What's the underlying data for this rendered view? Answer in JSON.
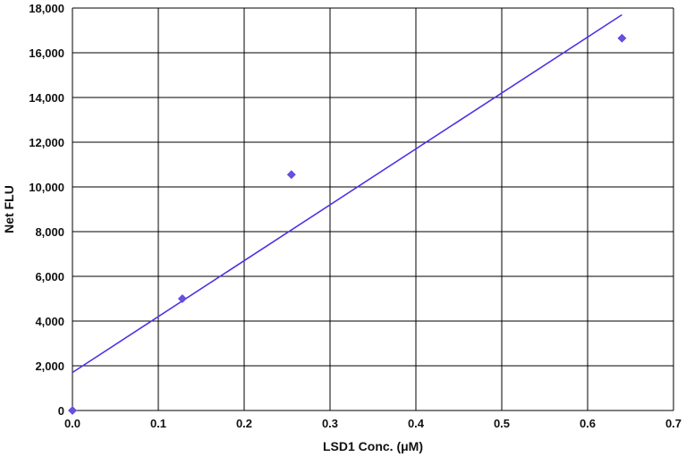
{
  "chart_data": {
    "type": "scatter",
    "title": "",
    "xlabel": "LSD1 Conc. (μM)",
    "ylabel": "Net FLU",
    "xlim": [
      0,
      0.7
    ],
    "ylim": [
      0,
      18000
    ],
    "grid": true,
    "x_ticks": [
      0,
      0.1,
      0.2,
      0.3,
      0.4,
      0.5,
      0.6,
      0.7
    ],
    "x_tick_labels": [
      "0.0",
      "0.1",
      "0.2",
      "0.3",
      "0.4",
      "0.5",
      "0.6",
      "0.7"
    ],
    "y_ticks": [
      0,
      2000,
      4000,
      6000,
      8000,
      10000,
      12000,
      14000,
      16000,
      18000
    ],
    "y_tick_labels": [
      "0",
      "2,000",
      "4,000",
      "6,000",
      "8,000",
      "10,000",
      "12,000",
      "14,000",
      "16,000",
      "18,000"
    ],
    "series": [
      {
        "x": [
          0,
          0.128,
          0.255,
          0.64
        ],
        "y": [
          0,
          5000,
          10550,
          16650
        ],
        "marker": "diamond",
        "color": "#6a4fe0"
      }
    ],
    "trendline": {
      "type": "linear",
      "x": [
        0,
        0.64
      ],
      "y": [
        1700,
        17700
      ],
      "color": "#4b33e6"
    }
  }
}
